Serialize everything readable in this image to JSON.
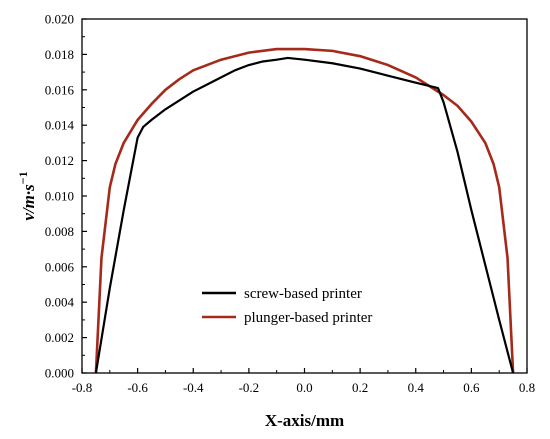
{
  "chart_data": {
    "type": "line",
    "xlabel": "X-axis/mm",
    "ylabel": "v/m·s",
    "ylabel_exponent": "−1",
    "xlim": [
      -0.8,
      0.8
    ],
    "ylim": [
      0,
      0.02
    ],
    "x_ticks": [
      "-0.8",
      "-0.6",
      "-0.4",
      "-0.2",
      "0.0",
      "0.2",
      "0.4",
      "0.6",
      "0.8"
    ],
    "y_ticks": [
      "0.000",
      "0.002",
      "0.004",
      "0.006",
      "0.008",
      "0.010",
      "0.012",
      "0.014",
      "0.016",
      "0.018",
      "0.020"
    ],
    "grid": false,
    "legend_position": "lower-center",
    "series": [
      {
        "name": "screw-based printer",
        "color": "#000000",
        "x": [
          -0.75,
          -0.7,
          -0.65,
          -0.6,
          -0.58,
          -0.55,
          -0.5,
          -0.45,
          -0.4,
          -0.35,
          -0.3,
          -0.25,
          -0.2,
          -0.15,
          -0.1,
          -0.06,
          0.0,
          0.1,
          0.2,
          0.3,
          0.4,
          0.48,
          0.5,
          0.55,
          0.6,
          0.65,
          0.7,
          0.75
        ],
        "y": [
          0.0,
          0.0048,
          0.0092,
          0.0133,
          0.0139,
          0.0143,
          0.0149,
          0.0154,
          0.0159,
          0.0163,
          0.0167,
          0.0171,
          0.0174,
          0.0176,
          0.0177,
          0.0178,
          0.0177,
          0.0175,
          0.0172,
          0.0168,
          0.0164,
          0.0161,
          0.0153,
          0.0125,
          0.0092,
          0.0061,
          0.003,
          0.0
        ]
      },
      {
        "name": "plunger-based printer",
        "color": "#a52a1a",
        "x": [
          -0.75,
          -0.73,
          -0.7,
          -0.68,
          -0.65,
          -0.6,
          -0.55,
          -0.5,
          -0.45,
          -0.4,
          -0.3,
          -0.2,
          -0.1,
          0.0,
          0.1,
          0.2,
          0.3,
          0.4,
          0.45,
          0.5,
          0.55,
          0.6,
          0.65,
          0.68,
          0.7,
          0.73,
          0.75
        ],
        "y": [
          0.0,
          0.0065,
          0.0105,
          0.0118,
          0.013,
          0.0143,
          0.0152,
          0.016,
          0.0166,
          0.0171,
          0.0177,
          0.0181,
          0.0183,
          0.0183,
          0.0182,
          0.0179,
          0.0174,
          0.0167,
          0.0162,
          0.0157,
          0.0151,
          0.0142,
          0.013,
          0.0118,
          0.0105,
          0.0065,
          0.0
        ]
      }
    ]
  }
}
